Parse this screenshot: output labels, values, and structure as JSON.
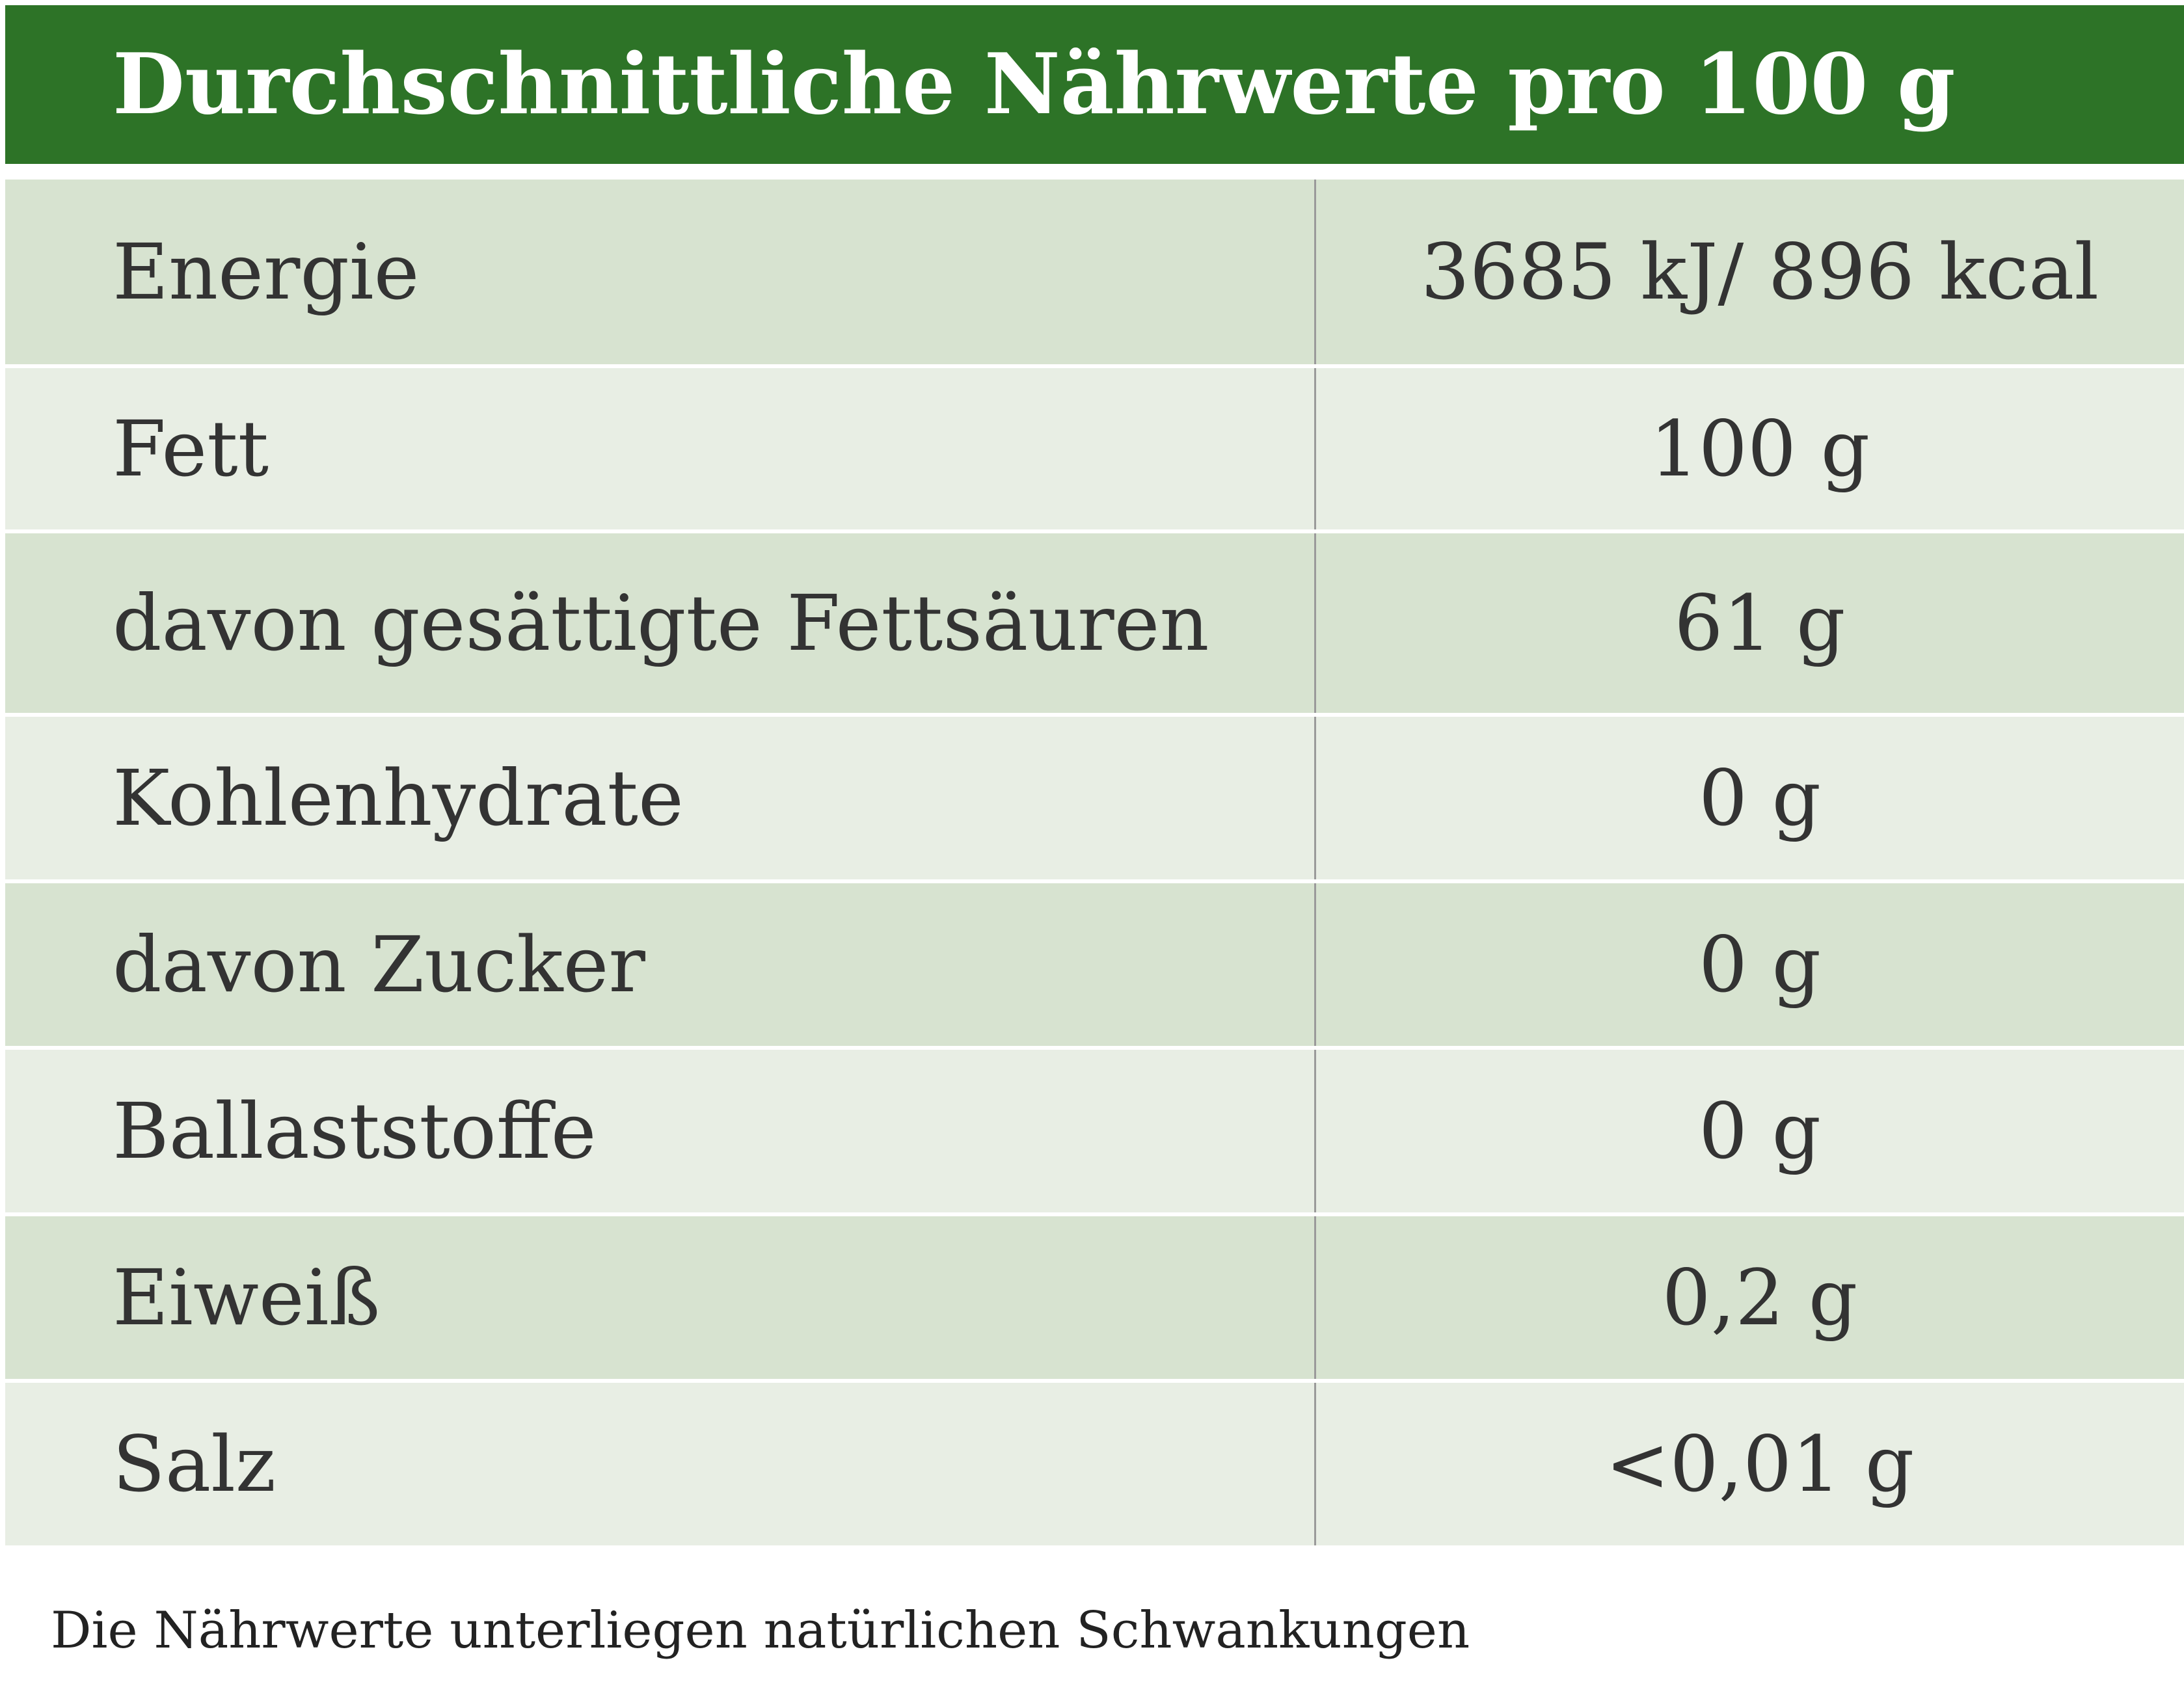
{
  "header": {
    "title": "Durchschnittliche Nährwerte pro 100 g"
  },
  "rows": [
    {
      "label": "Energie",
      "value": "3685 kJ/ 896 kcal"
    },
    {
      "label": "Fett",
      "value": "100 g"
    },
    {
      "label": "davon gesättigte Fettsäuren",
      "value": "61 g"
    },
    {
      "label": "Kohlenhydrate",
      "value": "0 g"
    },
    {
      "label": "davon Zucker",
      "value": "0 g"
    },
    {
      "label": "Ballaststoffe",
      "value": "0 g"
    },
    {
      "label": "Eiweiß",
      "value": "0,2 g"
    },
    {
      "label": "Salz",
      "value": "<0,01 g"
    }
  ],
  "footnote": "Die Nährwerte unterliegen natürlichen Schwankungen",
  "colors": {
    "header_bg": "#2d7327",
    "row_dark": "#d7e3d0",
    "row_light": "#e8eee4"
  }
}
